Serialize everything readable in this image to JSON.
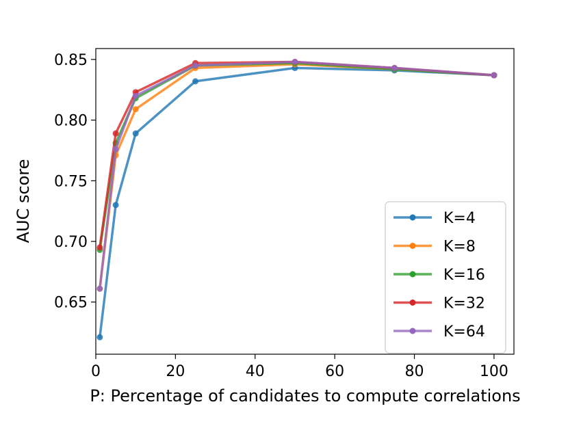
{
  "chart_data": {
    "type": "line",
    "title": "",
    "xlabel": "P: Percentage of candidates to compute correlations",
    "ylabel": "AUC score",
    "xlim": [
      0,
      105
    ],
    "ylim": [
      0.607,
      0.859
    ],
    "xticks": [
      0,
      20,
      40,
      60,
      80,
      100
    ],
    "yticks": [
      0.65,
      0.7,
      0.75,
      0.8,
      0.85
    ],
    "xtick_labels": [
      "0",
      "20",
      "40",
      "60",
      "80",
      "100"
    ],
    "ytick_labels": [
      "0.65",
      "0.70",
      "0.75",
      "0.80",
      "0.85"
    ],
    "grid": false,
    "legend_position": "lower-right",
    "x": [
      1,
      5,
      10,
      25,
      50,
      75,
      100
    ],
    "series": [
      {
        "name": "K=4",
        "color": "#1f77b4",
        "values": [
          0.621,
          0.73,
          0.789,
          0.832,
          0.843,
          0.841,
          0.837
        ]
      },
      {
        "name": "K=8",
        "color": "#ff7f0e",
        "values": [
          0.661,
          0.771,
          0.809,
          0.843,
          0.846,
          0.842,
          0.837
        ]
      },
      {
        "name": "K=16",
        "color": "#2ca02c",
        "values": [
          0.693,
          0.781,
          0.818,
          0.845,
          0.847,
          0.842,
          0.837
        ]
      },
      {
        "name": "K=32",
        "color": "#d62728",
        "values": [
          0.695,
          0.789,
          0.823,
          0.847,
          0.848,
          0.843,
          0.837
        ]
      },
      {
        "name": "K=64",
        "color": "#9467bd",
        "values": [
          0.661,
          0.776,
          0.82,
          0.845,
          0.848,
          0.843,
          0.837
        ]
      }
    ]
  }
}
